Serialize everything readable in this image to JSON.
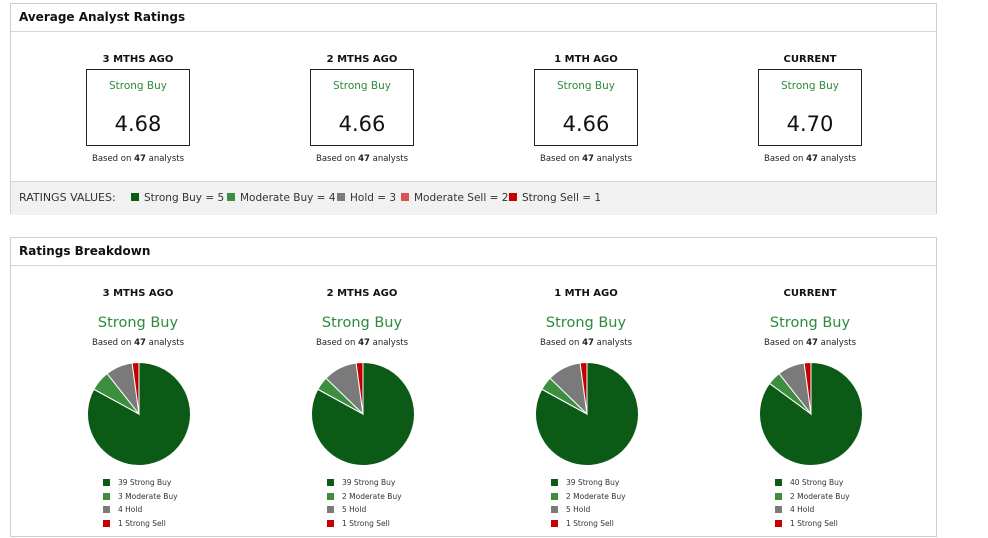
{
  "colors": {
    "strong_buy": "#0b5a15",
    "moderate_buy": "#3d8f3f",
    "hold": "#7a7a7a",
    "moderate_sell": "#d9534f",
    "strong_sell": "#c40000",
    "rating_text": "#2e8b3e"
  },
  "average": {
    "title": "Average Analyst Ratings",
    "columns": [
      {
        "heading": "3 MTHS AGO",
        "rating": "Strong Buy",
        "score": "4.68",
        "based_prefix": "Based on ",
        "analysts": "47",
        "based_suffix": " analysts"
      },
      {
        "heading": "2 MTHS AGO",
        "rating": "Strong Buy",
        "score": "4.66",
        "based_prefix": "Based on ",
        "analysts": "47",
        "based_suffix": " analysts"
      },
      {
        "heading": "1 MTH AGO",
        "rating": "Strong Buy",
        "score": "4.66",
        "based_prefix": "Based on ",
        "analysts": "47",
        "based_suffix": " analysts"
      },
      {
        "heading": "CURRENT",
        "rating": "Strong Buy",
        "score": "4.70",
        "based_prefix": "Based on ",
        "analysts": "47",
        "based_suffix": " analysts"
      }
    ],
    "values_label": "RATINGS VALUES:",
    "values": [
      {
        "label": "Strong Buy = 5",
        "color": "#0b5a15"
      },
      {
        "label": "Moderate Buy = 4",
        "color": "#3d8f3f"
      },
      {
        "label": "Hold = 3",
        "color": "#7a7a7a"
      },
      {
        "label": "Moderate Sell = 2",
        "color": "#d9534f"
      },
      {
        "label": "Strong Sell = 1",
        "color": "#c40000"
      }
    ]
  },
  "breakdown": {
    "title": "Ratings Breakdown",
    "columns": [
      {
        "heading": "3 MTHS AGO",
        "rating": "Strong Buy",
        "based_prefix": "Based on ",
        "analysts": "47",
        "based_suffix": " analysts",
        "legend": [
          "39 Strong Buy",
          "3 Moderate Buy",
          "4 Hold",
          "1 Strong Sell"
        ],
        "slices": [
          {
            "name": "Strong Buy",
            "value": 39
          },
          {
            "name": "Moderate Buy",
            "value": 3
          },
          {
            "name": "Hold",
            "value": 4
          },
          {
            "name": "Strong Sell",
            "value": 1
          }
        ]
      },
      {
        "heading": "2 MTHS AGO",
        "rating": "Strong Buy",
        "based_prefix": "Based on ",
        "analysts": "47",
        "based_suffix": " analysts",
        "legend": [
          "39 Strong Buy",
          "2 Moderate Buy",
          "5 Hold",
          "1 Strong Sell"
        ],
        "slices": [
          {
            "name": "Strong Buy",
            "value": 39
          },
          {
            "name": "Moderate Buy",
            "value": 2
          },
          {
            "name": "Hold",
            "value": 5
          },
          {
            "name": "Strong Sell",
            "value": 1
          }
        ]
      },
      {
        "heading": "1 MTH AGO",
        "rating": "Strong Buy",
        "based_prefix": "Based on ",
        "analysts": "47",
        "based_suffix": " analysts",
        "legend": [
          "39 Strong Buy",
          "2 Moderate Buy",
          "5 Hold",
          "1 Strong Sell"
        ],
        "slices": [
          {
            "name": "Strong Buy",
            "value": 39
          },
          {
            "name": "Moderate Buy",
            "value": 2
          },
          {
            "name": "Hold",
            "value": 5
          },
          {
            "name": "Strong Sell",
            "value": 1
          }
        ]
      },
      {
        "heading": "CURRENT",
        "rating": "Strong Buy",
        "based_prefix": "Based on ",
        "analysts": "47",
        "based_suffix": " analysts",
        "legend": [
          "40 Strong Buy",
          "2 Moderate Buy",
          "4 Hold",
          "1 Strong Sell"
        ],
        "slices": [
          {
            "name": "Strong Buy",
            "value": 40
          },
          {
            "name": "Moderate Buy",
            "value": 2
          },
          {
            "name": "Hold",
            "value": 4
          },
          {
            "name": "Strong Sell",
            "value": 1
          }
        ]
      }
    ]
  }
}
